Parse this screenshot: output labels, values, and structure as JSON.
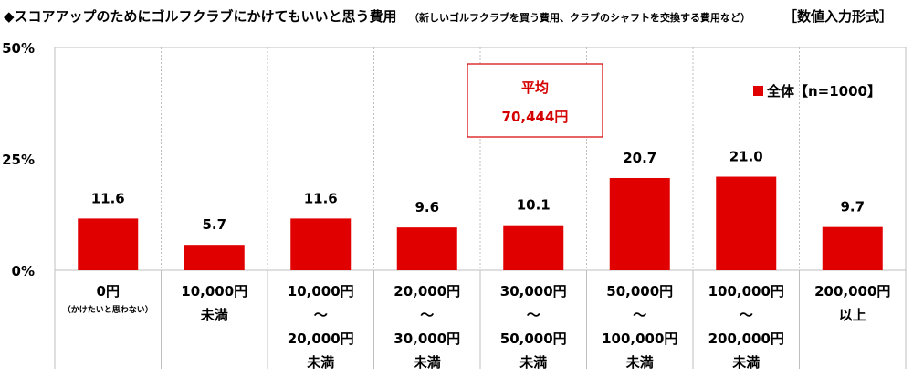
{
  "chart_data": {
    "type": "bar",
    "title": "◆スコアアップのためにゴルフクラブにかけてもいいと思う費用",
    "title_note": "（新しいゴルフクラブを買う費用、クラブのシャフトを交換する費用など）",
    "title_format": "［数値入力形式］",
    "categories": [
      [
        "0円"
      ],
      [
        "10,000円",
        "未満"
      ],
      [
        "10,000円",
        "～",
        "20,000円",
        "未満"
      ],
      [
        "20,000円",
        "～",
        "30,000円",
        "未満"
      ],
      [
        "30,000円",
        "～",
        "50,000円",
        "未満"
      ],
      [
        "50,000円",
        "～",
        "100,000円",
        "未満"
      ],
      [
        "100,000円",
        "～",
        "200,000円",
        "未満"
      ],
      [
        "200,000円",
        "以上"
      ]
    ],
    "category_notes": [
      "（かけたいと思わない）",
      "",
      "",
      "",
      "",
      "",
      "",
      ""
    ],
    "series": [
      {
        "name": "全体【n=1000】",
        "values": [
          11.6,
          5.7,
          11.6,
          9.6,
          10.1,
          20.7,
          21.0,
          9.7
        ],
        "color": "#e00000"
      }
    ],
    "y_ticks": [
      "0%",
      "25%",
      "50%"
    ],
    "ylim": [
      0,
      50
    ],
    "grid": "vertical-dotted",
    "legend_position": "top-right",
    "annotation": {
      "label": "平均",
      "value": "70,444円",
      "border_color": "#d40000",
      "text_color": "#d40000"
    }
  }
}
